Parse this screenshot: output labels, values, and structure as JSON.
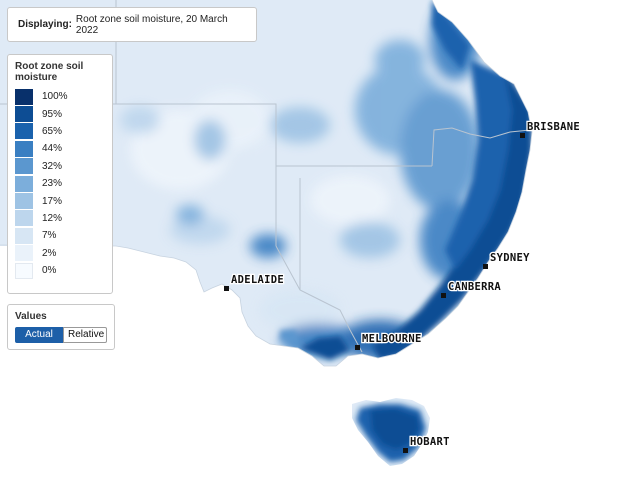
{
  "display": {
    "label": "Displaying:",
    "value": "Root zone soil moisture, 20 March 2022"
  },
  "legend": {
    "title": "Root zone soil moisture",
    "items": [
      {
        "label": "100%",
        "color": "#08306b"
      },
      {
        "label": "95%",
        "color": "#0d4d94"
      },
      {
        "label": "65%",
        "color": "#1a62ad"
      },
      {
        "label": "44%",
        "color": "#3a7fc2"
      },
      {
        "label": "32%",
        "color": "#5b97cf"
      },
      {
        "label": "23%",
        "color": "#7caedb"
      },
      {
        "label": "17%",
        "color": "#9ec3e4"
      },
      {
        "label": "12%",
        "color": "#bdd6ed"
      },
      {
        "label": "7%",
        "color": "#d7e6f4"
      },
      {
        "label": "2%",
        "color": "#eaf2fa"
      },
      {
        "label": "0%",
        "color": "#f7fbff"
      }
    ]
  },
  "values": {
    "title": "Values",
    "actual_label": "Actual",
    "relative_label": "Relative",
    "selected": "Actual"
  },
  "cities": [
    {
      "name": "BRISBANE"
    },
    {
      "name": "SYDNEY"
    },
    {
      "name": "CANBERRA"
    },
    {
      "name": "ADELAIDE"
    },
    {
      "name": "MELBOURNE"
    },
    {
      "name": "HOBART"
    }
  ],
  "colors": {
    "ocean": "#ffffff",
    "land_base": "#dfeaf6",
    "coast_dark": "#0d4d94",
    "border": "#b9c4d0",
    "accent": "#1d5fa8"
  }
}
